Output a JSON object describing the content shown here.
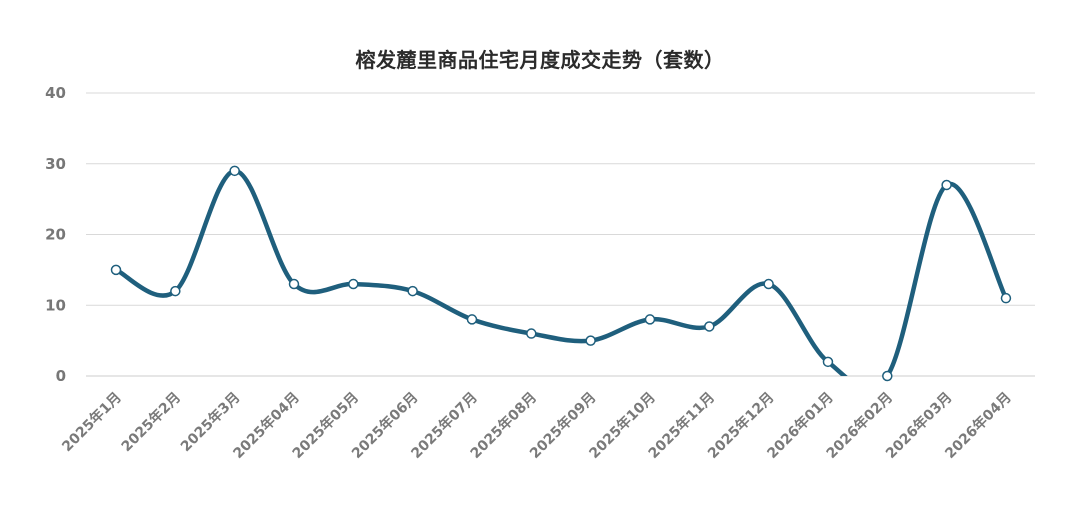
{
  "chart_data": {
    "type": "line",
    "title": "榕发麓里商品住宅月度成交走势（套数）",
    "xlabel": "",
    "ylabel": "",
    "ylim": [
      0,
      40
    ],
    "yticks": [
      0,
      10,
      20,
      30,
      40
    ],
    "grid": true,
    "legend": "none",
    "categories": [
      "2025年1月",
      "2025年2月",
      "2025年3月",
      "2025年04月",
      "2025年05月",
      "2025年06月",
      "2025年07月",
      "2025年08月",
      "2025年09月",
      "2025年10月",
      "2025年11月",
      "2025年12月",
      "2026年01月",
      "2026年02月",
      "2026年03月",
      "2026年04月"
    ],
    "series": [
      {
        "values": [
          15,
          12,
          29,
          13,
          13,
          12,
          8,
          6,
          5,
          8,
          7,
          13,
          2,
          0,
          27,
          11
        ]
      }
    ],
    "colors": {
      "line": "#1f5f7d",
      "marker_fill": "#ffffff",
      "grid": "#d9d9d9",
      "axis": "#cccccc"
    }
  }
}
